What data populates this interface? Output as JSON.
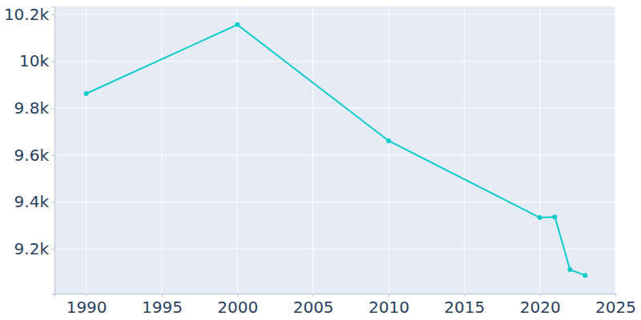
{
  "chart_data": {
    "type": "line",
    "x": [
      1990,
      2000,
      2010,
      2020,
      2021,
      2022,
      2023
    ],
    "values": [
      9862,
      10156,
      9661,
      9333,
      9336,
      9111,
      9087
    ],
    "color": "#0ccbcb",
    "marker": "circle",
    "xlim": [
      1987.9,
      2025
    ],
    "xticks": [
      1990,
      1995,
      2000,
      2005,
      2010,
      2015,
      2020,
      2025
    ],
    "ylim": [
      9009,
      10234
    ],
    "yticks": [
      {
        "value": 9200,
        "label": "9.2k"
      },
      {
        "value": 9400,
        "label": "9.4k"
      },
      {
        "value": 9600,
        "label": "9.6k"
      },
      {
        "value": 9800,
        "label": "9.8k"
      },
      {
        "value": 10000,
        "label": "10k"
      },
      {
        "value": 10200,
        "label": "10.2k"
      }
    ],
    "grid": true
  }
}
